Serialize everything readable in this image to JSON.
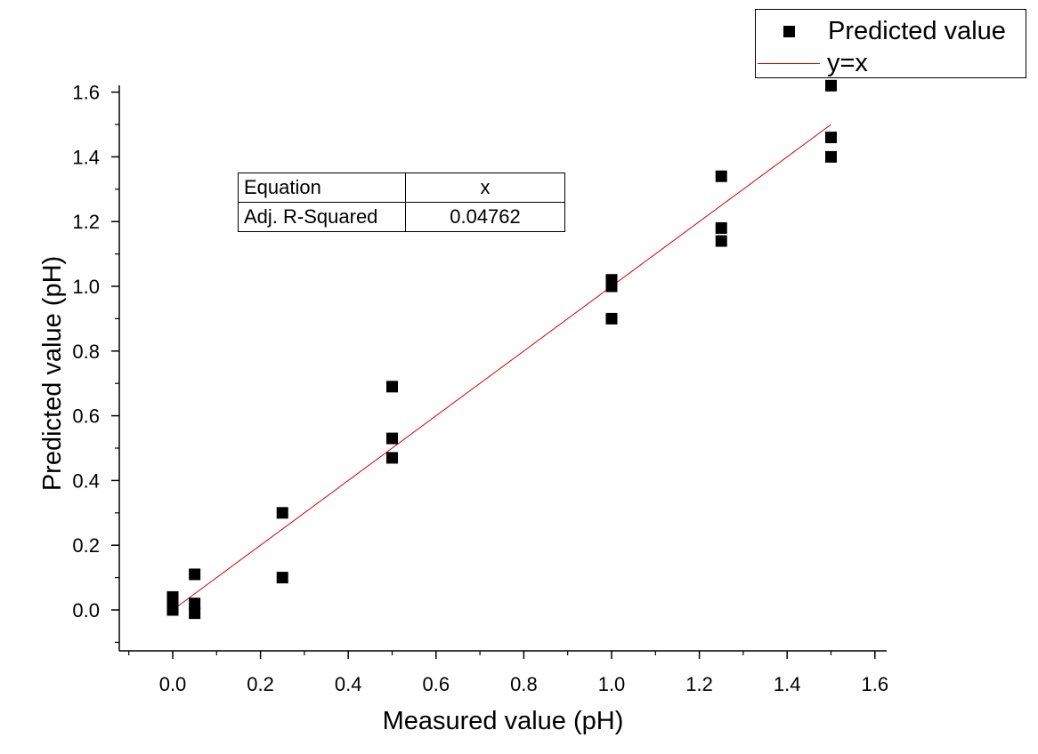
{
  "chart_data": {
    "type": "scatter",
    "xlabel": "Measured value (pH)",
    "ylabel": "Predicted value (pH)",
    "xlim": [
      -0.1,
      1.62
    ],
    "ylim": [
      -0.1,
      1.62
    ],
    "x_ticks": [
      0.0,
      0.2,
      0.4,
      0.6,
      0.8,
      1.0,
      1.2,
      1.4,
      1.6
    ],
    "x_tick_labels": [
      "0.0",
      "0.2",
      "0.4",
      "0.6",
      "0.8",
      "1.0",
      "1.2",
      "1.4",
      "1.6"
    ],
    "y_ticks": [
      0.0,
      0.2,
      0.4,
      0.6,
      0.8,
      1.0,
      1.2,
      1.4,
      1.6
    ],
    "y_tick_labels": [
      "0.0",
      "0.2",
      "0.4",
      "0.6",
      "0.8",
      "1.0",
      "1.2",
      "1.4",
      "1.6"
    ],
    "grid": false,
    "legend_position": "top-right",
    "series": [
      {
        "name": "Predicted value",
        "type": "scatter",
        "color": "#000000",
        "marker": "square",
        "points": [
          {
            "x": 0.0,
            "y": 0.04
          },
          {
            "x": 0.0,
            "y": 0.02
          },
          {
            "x": 0.0,
            "y": 0.0
          },
          {
            "x": 0.05,
            "y": 0.11
          },
          {
            "x": 0.05,
            "y": 0.02
          },
          {
            "x": 0.05,
            "y": -0.01
          },
          {
            "x": 0.25,
            "y": 0.3
          },
          {
            "x": 0.25,
            "y": 0.1
          },
          {
            "x": 0.5,
            "y": 0.69
          },
          {
            "x": 0.5,
            "y": 0.53
          },
          {
            "x": 0.5,
            "y": 0.47
          },
          {
            "x": 1.0,
            "y": 1.02
          },
          {
            "x": 1.0,
            "y": 1.0
          },
          {
            "x": 1.0,
            "y": 0.9
          },
          {
            "x": 1.25,
            "y": 1.34
          },
          {
            "x": 1.25,
            "y": 1.18
          },
          {
            "x": 1.25,
            "y": 1.14
          },
          {
            "x": 1.5,
            "y": 1.62
          },
          {
            "x": 1.5,
            "y": 1.46
          },
          {
            "x": 1.5,
            "y": 1.4
          }
        ]
      },
      {
        "name": "y=x",
        "type": "line",
        "color": "#d40000",
        "points": [
          {
            "x": 0.0,
            "y": 0.0
          },
          {
            "x": 1.5,
            "y": 1.5
          }
        ]
      }
    ],
    "stats_table": {
      "rows": [
        {
          "key": "Equation",
          "value": "x"
        },
        {
          "key": "Adj. R-Squared",
          "value": "0.04762"
        }
      ]
    }
  }
}
